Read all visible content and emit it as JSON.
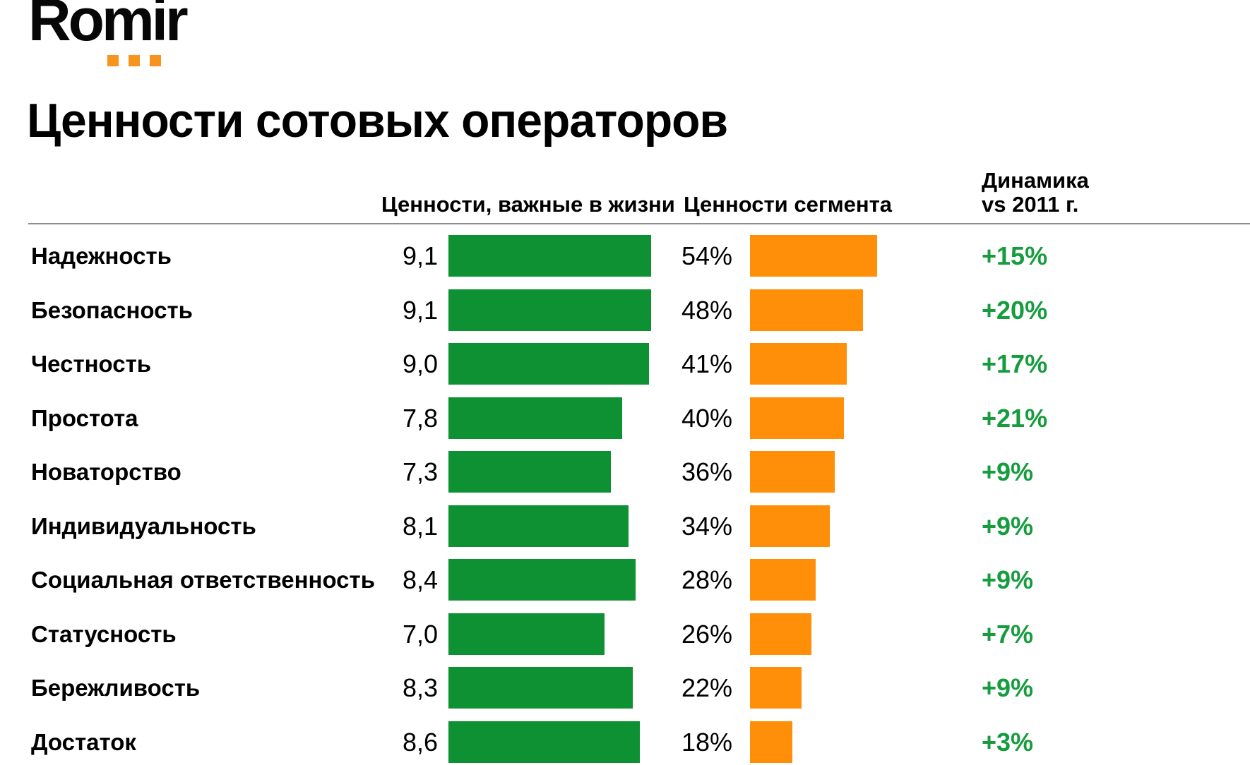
{
  "logo": {
    "text": "Romir"
  },
  "title": "Ценности сотовых операторов",
  "headers": {
    "life": "Ценности, важные в жизни",
    "segment": "Ценности сегмента",
    "dynamics_line1": "Динамика",
    "dynamics_line2": "vs 2011 г."
  },
  "colors": {
    "green_bar": "#0E9132",
    "orange_bar": "#FF8E08",
    "dynamics_text": "#169C3E",
    "logo_accent": "#F7941E",
    "divider": "#8C8C8C"
  },
  "chart_data": {
    "type": "bar",
    "orientation": "horizontal",
    "title": "Ценности сотовых операторов",
    "grid": false,
    "legend_position": "column-headers",
    "categories": [
      "Надежность",
      "Безопасность",
      "Честность",
      "Простота",
      "Новаторство",
      "Индивидуальность",
      "Социальная ответственность",
      "Статусность",
      "Бережливость",
      "Достаток"
    ],
    "series": [
      {
        "name": "Ценности, важные в жизни",
        "unit": "score 0-10",
        "values": [
          9.1,
          9.1,
          9.0,
          7.8,
          7.3,
          8.1,
          8.4,
          7.0,
          8.3,
          8.6
        ],
        "labels": [
          "9,1",
          "9,1",
          "9,0",
          "7,8",
          "7,3",
          "8,1",
          "8,4",
          "7,0",
          "8,3",
          "8,6"
        ],
        "color": "#0E9132"
      },
      {
        "name": "Ценности сегмента",
        "unit": "percent",
        "values": [
          54,
          48,
          41,
          40,
          36,
          34,
          28,
          26,
          22,
          18
        ],
        "labels": [
          "54%",
          "48%",
          "41%",
          "40%",
          "36%",
          "34%",
          "28%",
          "26%",
          "22%",
          "18%"
        ],
        "color": "#FF8E08"
      },
      {
        "name": "Динамика vs 2011 г.",
        "unit": "percent change",
        "values": [
          15,
          20,
          17,
          21,
          9,
          9,
          9,
          7,
          9,
          3
        ],
        "labels": [
          "+15%",
          "+20%",
          "+17%",
          "+21%",
          "+9%",
          "+9%",
          "+9%",
          "+7%",
          "+9%",
          "+3%"
        ],
        "color": "#169C3E"
      }
    ]
  }
}
